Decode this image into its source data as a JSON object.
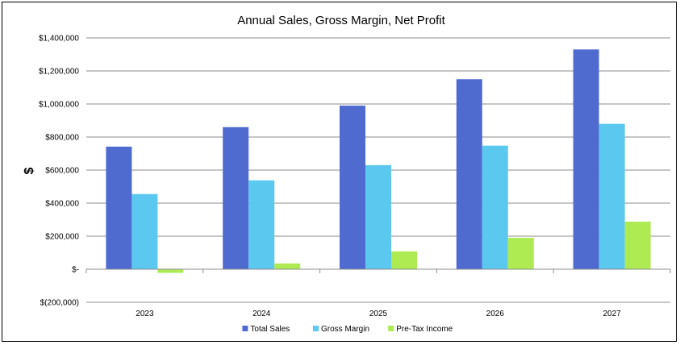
{
  "chart_data": {
    "type": "bar",
    "title": "Annual Sales, Gross Margin, Net Profit",
    "ylabel": "$",
    "xlabel": "",
    "categories": [
      "2023",
      "2024",
      "2025",
      "2026",
      "2027"
    ],
    "series": [
      {
        "name": "Total Sales",
        "color": "#4F6BD0",
        "values": [
          742000,
          860000,
          990000,
          1150000,
          1330000
        ]
      },
      {
        "name": "Gross Margin",
        "color": "#5BC8F0",
        "values": [
          455000,
          538000,
          630000,
          748000,
          880000
        ]
      },
      {
        "name": "Pre-Tax Income",
        "color": "#AEEB52",
        "values": [
          -22000,
          35000,
          108000,
          190000,
          288000
        ]
      }
    ],
    "ylim": [
      -200000,
      1400000
    ],
    "yticks": [
      -200000,
      0,
      200000,
      400000,
      600000,
      800000,
      1000000,
      1200000,
      1400000
    ],
    "ytick_labels": [
      "$(200,000)",
      "$-",
      "$200,000",
      "$400,000",
      "$600,000",
      "$800,000",
      "$1,000,000",
      "$1,200,000",
      "$1,400,000"
    ],
    "grid": true,
    "legend_position": "bottom"
  }
}
